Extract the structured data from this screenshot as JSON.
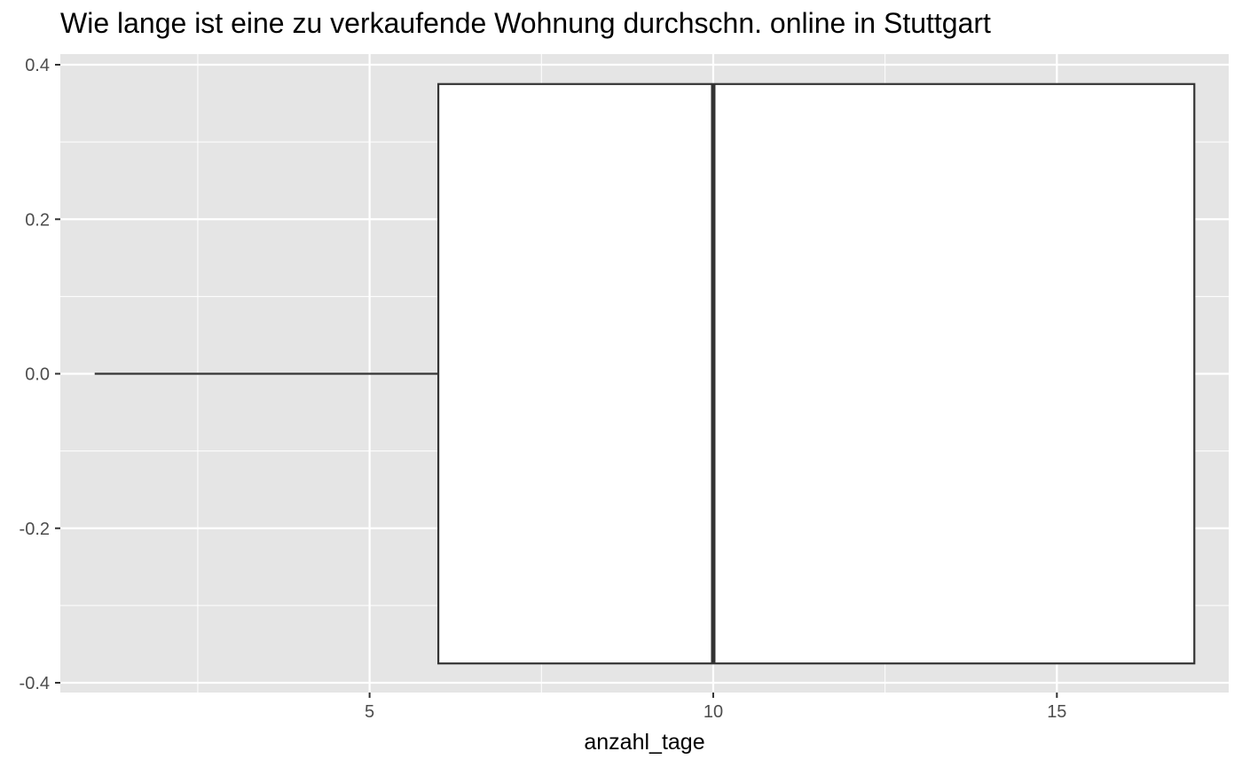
{
  "chart_data": {
    "type": "boxplot",
    "title": "Wie lange ist eine zu verkaufende Wohnung durchschn. online in Stuttgart",
    "xlabel": "anzahl_tage",
    "ylabel": "",
    "xlim": [
      0.5,
      17.5
    ],
    "ylim": [
      -0.4,
      0.4
    ],
    "x_ticks": [
      5,
      10,
      15
    ],
    "x_tick_labels": [
      "5",
      "10",
      "15"
    ],
    "y_ticks": [
      -0.4,
      -0.2,
      0.0,
      0.2,
      0.4
    ],
    "y_tick_labels": [
      "-0.4",
      "-0.2",
      "0.0",
      "0.2",
      "0.4"
    ],
    "grid": true,
    "box": {
      "whisker_low": 1,
      "q1": 6,
      "median": 10,
      "q3": 17,
      "whisker_high": 17,
      "y_center": 0,
      "half_height": 0.375
    },
    "colors": {
      "panel": "#e5e5e5",
      "grid": "#ffffff",
      "box_fill": "#ffffff",
      "box_line": "#333333"
    }
  }
}
